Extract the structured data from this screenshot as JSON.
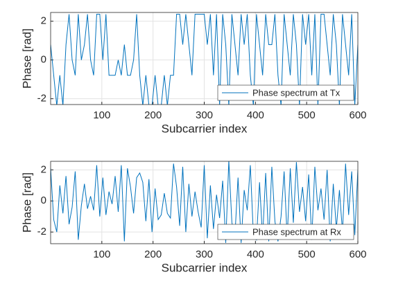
{
  "chart_data": [
    {
      "type": "line",
      "xlabel": "Subcarrier index",
      "ylabel": "Phase [rad]",
      "x": [
        0,
        6,
        12,
        18,
        24,
        30,
        36,
        42,
        48,
        54,
        60,
        66,
        72,
        78,
        84,
        90,
        96,
        102,
        108,
        114,
        120,
        126,
        132,
        138,
        144,
        150,
        156,
        162,
        168,
        174,
        180,
        186,
        192,
        198,
        204,
        210,
        216,
        222,
        228,
        234,
        240,
        246,
        252,
        258,
        264,
        270,
        276,
        282,
        288,
        294,
        300,
        306,
        312,
        318,
        324,
        330,
        336,
        342,
        348,
        354,
        360,
        366,
        372,
        378,
        384,
        390,
        396,
        402,
        408,
        414,
        420,
        426,
        432,
        438,
        444,
        450,
        456,
        462,
        468,
        474,
        480,
        486,
        492,
        498,
        504,
        510,
        516,
        522,
        528,
        534,
        540,
        546,
        552,
        558,
        564,
        570,
        576,
        582,
        588,
        594,
        600
      ],
      "series": [
        {
          "name": "Phase spectrum at Tx",
          "color": "#0072bd",
          "values": [
            0.79,
            -0.79,
            -2.36,
            -0.79,
            -2.36,
            0.79,
            2.36,
            0,
            -0.79,
            2.36,
            0,
            0.79,
            2.36,
            0,
            -0.79,
            2.36,
            2.36,
            0,
            2.36,
            -0.79,
            -0.79,
            -0.79,
            0,
            -0.79,
            0.79,
            -0.79,
            -0.79,
            0,
            2.36,
            -0.79,
            -2.36,
            -0.79,
            -2.36,
            -2.36,
            -0.79,
            -2.36,
            -2.36,
            -0.79,
            -2.36,
            -0.79,
            -0.79,
            2.36,
            2.36,
            0.79,
            2.36,
            0.79,
            -0.79,
            2.36,
            2.36,
            2.36,
            2.36,
            0.79,
            2.36,
            -0.79,
            2.36,
            -2.36,
            2.36,
            0.79,
            -2.36,
            2.36,
            0.79,
            -0.79,
            2.36,
            0.79,
            2.36,
            -0.79,
            -2.36,
            2.36,
            0.79,
            -0.79,
            2.36,
            0.79,
            0.79,
            2.36,
            -0.79,
            -2.36,
            2.36,
            0.79,
            -0.79,
            2.36,
            0.79,
            -2.36,
            2.36,
            0.79,
            2.36,
            -0.79,
            2.36,
            -2.36,
            2.36,
            2.36,
            0.79,
            -0.79,
            2.36,
            0.79,
            -2.36,
            2.36,
            0.79,
            -0.79,
            2.36,
            -2.36,
            0.79
          ]
        }
      ],
      "xlim": [
        0,
        600
      ],
      "xticks": [
        100,
        200,
        300,
        400,
        500,
        600
      ],
      "ylim": [
        -2.3,
        2.45
      ],
      "yticks": [
        -2,
        0,
        2
      ],
      "grid": true,
      "legend": "lower right"
    },
    {
      "type": "line",
      "xlabel": "Subcarrier index",
      "ylabel": "Phase [rad]",
      "x": [
        0,
        6,
        12,
        18,
        24,
        30,
        36,
        42,
        48,
        54,
        60,
        66,
        72,
        78,
        84,
        90,
        96,
        102,
        108,
        114,
        120,
        126,
        132,
        138,
        144,
        150,
        156,
        162,
        168,
        174,
        180,
        186,
        192,
        198,
        204,
        210,
        216,
        222,
        228,
        234,
        240,
        246,
        252,
        258,
        264,
        270,
        276,
        282,
        288,
        294,
        300,
        306,
        312,
        318,
        324,
        330,
        336,
        342,
        348,
        354,
        360,
        366,
        372,
        378,
        384,
        390,
        396,
        402,
        408,
        414,
        420,
        426,
        432,
        438,
        444,
        450,
        456,
        462,
        468,
        474,
        480,
        486,
        492,
        498,
        504,
        510,
        516,
        522,
        528,
        534,
        540,
        546,
        552,
        558,
        564,
        570,
        576,
        582,
        588,
        594,
        600
      ],
      "series": [
        {
          "name": "Phase spectrum at Rx",
          "color": "#0072bd",
          "values": [
            2.1,
            -1.2,
            -2.0,
            1.0,
            -0.8,
            1.6,
            -1.5,
            -0.4,
            1.9,
            -2.5,
            -0.3,
            1.1,
            -0.5,
            0.3,
            -0.6,
            2.3,
            -1.0,
            1.5,
            -0.9,
            0.6,
            -0.2,
            1.6,
            -0.7,
            2.3,
            -2.6,
            2.1,
            0.9,
            -0.8,
            1.5,
            1.8,
            1.2,
            -1.3,
            1.4,
            -2.0,
            0.8,
            -1.2,
            -0.9,
            0.5,
            -0.8,
            -1.1,
            2.4,
            0.9,
            -1.6,
            2.2,
            -2.0,
            1.1,
            -1.0,
            0.6,
            -0.7,
            -1.7,
            2.3,
            -2.4,
            1.0,
            -1.8,
            0.4,
            -1.1,
            1.3,
            -2.7,
            2.6,
            -1.4,
            -2.2,
            1.5,
            -2.7,
            0.7,
            -0.6,
            2.3,
            -2.2,
            -2.5,
            1.2,
            -2.4,
            1.8,
            -2.6,
            2.2,
            -1.3,
            -2.6,
            -1.0,
            1.9,
            -2.4,
            2.1,
            -1.4,
            2.5,
            -0.7,
            0.9,
            -1.3,
            1.7,
            -2.5,
            2.2,
            -0.6,
            0.8,
            -1.2,
            2.0,
            -2.6,
            1.1,
            -1.8,
            0.7,
            -2.0,
            2.4,
            -0.9,
            1.9,
            -2.2,
            2.0
          ]
        }
      ],
      "xlim": [
        0,
        600
      ],
      "xticks": [
        100,
        200,
        300,
        400,
        500,
        600
      ],
      "ylim": [
        -2.75,
        2.55
      ],
      "yticks": [
        -2,
        0,
        2
      ],
      "grid": true,
      "legend": "lower right"
    }
  ]
}
